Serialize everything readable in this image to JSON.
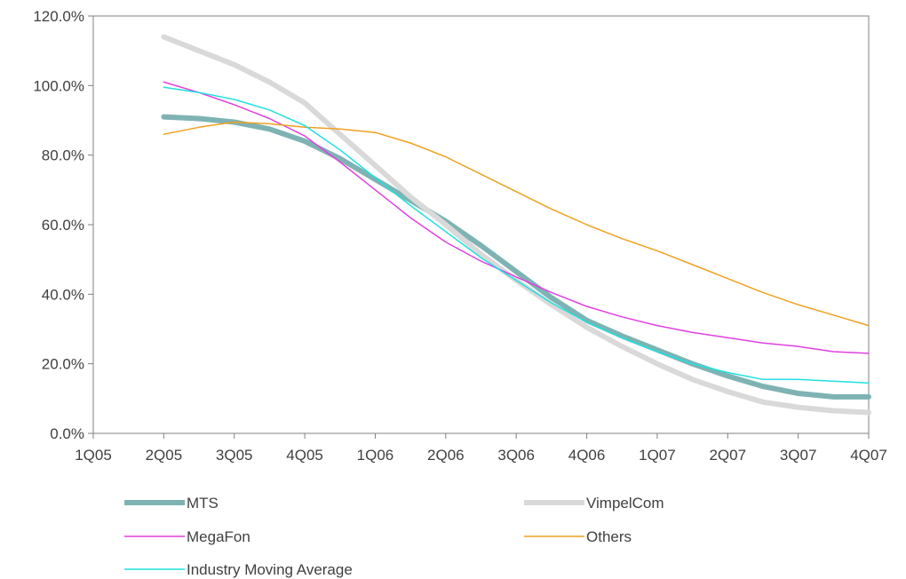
{
  "chart_data": {
    "type": "line",
    "title": "",
    "xlabel": "",
    "ylabel": "",
    "categories": [
      "1Q05",
      "2Q05",
      "3Q05",
      "4Q05",
      "1Q06",
      "2Q06",
      "3Q06",
      "4Q06",
      "1Q07",
      "2Q07",
      "3Q07",
      "4Q07"
    ],
    "ylim": [
      0,
      120
    ],
    "yticks": [
      "0.0%",
      "20.0%",
      "40.0%",
      "60.0%",
      "80.0%",
      "100.0%",
      "120.0%"
    ],
    "grid": false,
    "legend_position": "bottom",
    "series": [
      {
        "name": "MTS",
        "color": "#7fb3b3",
        "width": 6,
        "x": [
          1,
          1.5,
          2,
          2.5,
          3,
          3.5,
          4,
          4.5,
          5,
          5.5,
          6,
          6.5,
          7,
          7.5,
          8,
          8.5,
          9,
          9.5,
          10,
          10.5,
          11
        ],
        "values": [
          91,
          90.5,
          89.5,
          87.5,
          84,
          79,
          73,
          67,
          61,
          54,
          46.5,
          39,
          32.5,
          28,
          24,
          20,
          16.5,
          13.5,
          11.5,
          10.5,
          10.5
        ]
      },
      {
        "name": "VimpelCom",
        "color": "#d9d9d9",
        "width": 6,
        "x": [
          1,
          1.5,
          2,
          2.5,
          3,
          3.5,
          4,
          4.5,
          5,
          5.5,
          6,
          6.5,
          7,
          7.5,
          8,
          8.5,
          9,
          9.5,
          10,
          10.5,
          11
        ],
        "values": [
          114,
          110,
          106,
          101,
          95,
          86,
          77,
          68,
          60,
          51.5,
          44,
          37,
          30.5,
          25,
          20,
          15.5,
          12,
          9,
          7.5,
          6.5,
          6
        ]
      },
      {
        "name": "MegaFon",
        "color": "#e040e0",
        "width": 1.5,
        "x": [
          1,
          1.5,
          2,
          2.5,
          3,
          3.5,
          4,
          4.5,
          5,
          5.5,
          6,
          6.5,
          7,
          7.5,
          8,
          8.5,
          9,
          9.5,
          10,
          10.5,
          11
        ],
        "values": [
          101,
          98,
          94.5,
          90.5,
          85.5,
          78,
          70,
          62,
          55,
          49.5,
          45,
          40.5,
          36.5,
          33.5,
          31,
          29,
          27.5,
          26,
          25,
          23.5,
          23
        ]
      },
      {
        "name": "Others",
        "color": "#f0a020",
        "width": 1.5,
        "x": [
          1,
          1.5,
          2,
          2.5,
          3,
          3.5,
          4,
          4.5,
          5,
          5.5,
          6,
          6.5,
          7,
          7.5,
          8,
          8.5,
          9,
          9.5,
          10,
          10.5,
          11
        ],
        "values": [
          86,
          88,
          89.5,
          89,
          88,
          87.5,
          86.5,
          83.5,
          79.5,
          74.5,
          69.5,
          64.5,
          60,
          56,
          52.5,
          48.5,
          44.5,
          40.5,
          37,
          34,
          31
        ]
      },
      {
        "name": "Industry Moving Average",
        "color": "#20e0e0",
        "width": 1.5,
        "x": [
          1,
          1.5,
          2,
          2.5,
          3,
          3.5,
          4,
          4.5,
          5,
          5.5,
          6,
          6.5,
          7,
          7.5,
          8,
          8.5,
          9,
          9.5,
          10,
          10.5,
          11
        ],
        "values": [
          99.5,
          98,
          96,
          93,
          88.5,
          81.5,
          73.5,
          65.5,
          58,
          50.5,
          44,
          37.5,
          32,
          27.5,
          23.5,
          20,
          17.5,
          15.5,
          15.5,
          15,
          14.5
        ]
      }
    ]
  }
}
